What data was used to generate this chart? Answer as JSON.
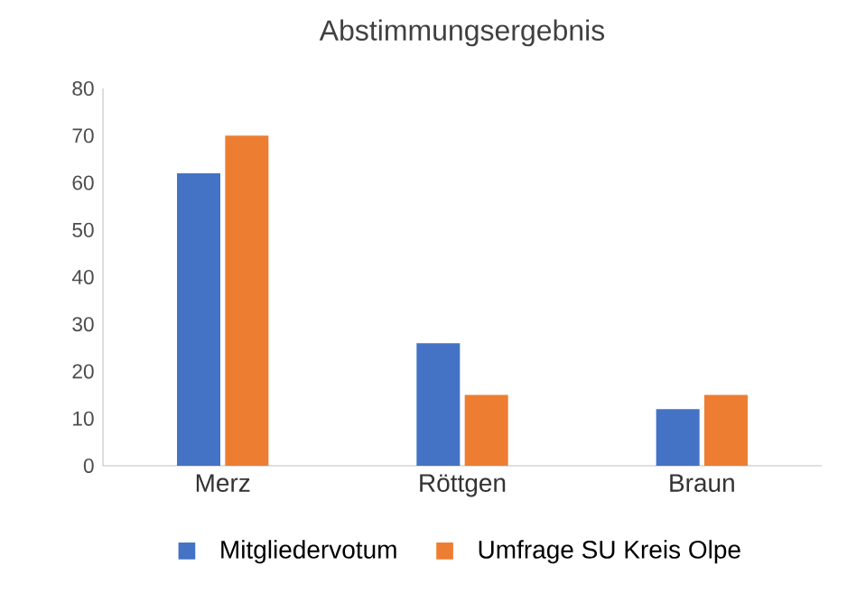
{
  "chart_data": {
    "type": "bar",
    "title": "Abstimmungsergebnis",
    "categories": [
      "Merz",
      "Röttgen",
      "Braun"
    ],
    "series": [
      {
        "name": "Mitgliedervotum",
        "color": "#4472c4",
        "values": [
          62,
          26,
          12
        ]
      },
      {
        "name": "Umfrage SU Kreis Olpe",
        "color": "#ed7d31",
        "values": [
          70,
          15,
          15
        ]
      }
    ],
    "ylim": [
      0,
      80
    ],
    "yticks": [
      0,
      10,
      20,
      30,
      40,
      50,
      60,
      70,
      80
    ],
    "grid": false,
    "legend": "bottom"
  }
}
